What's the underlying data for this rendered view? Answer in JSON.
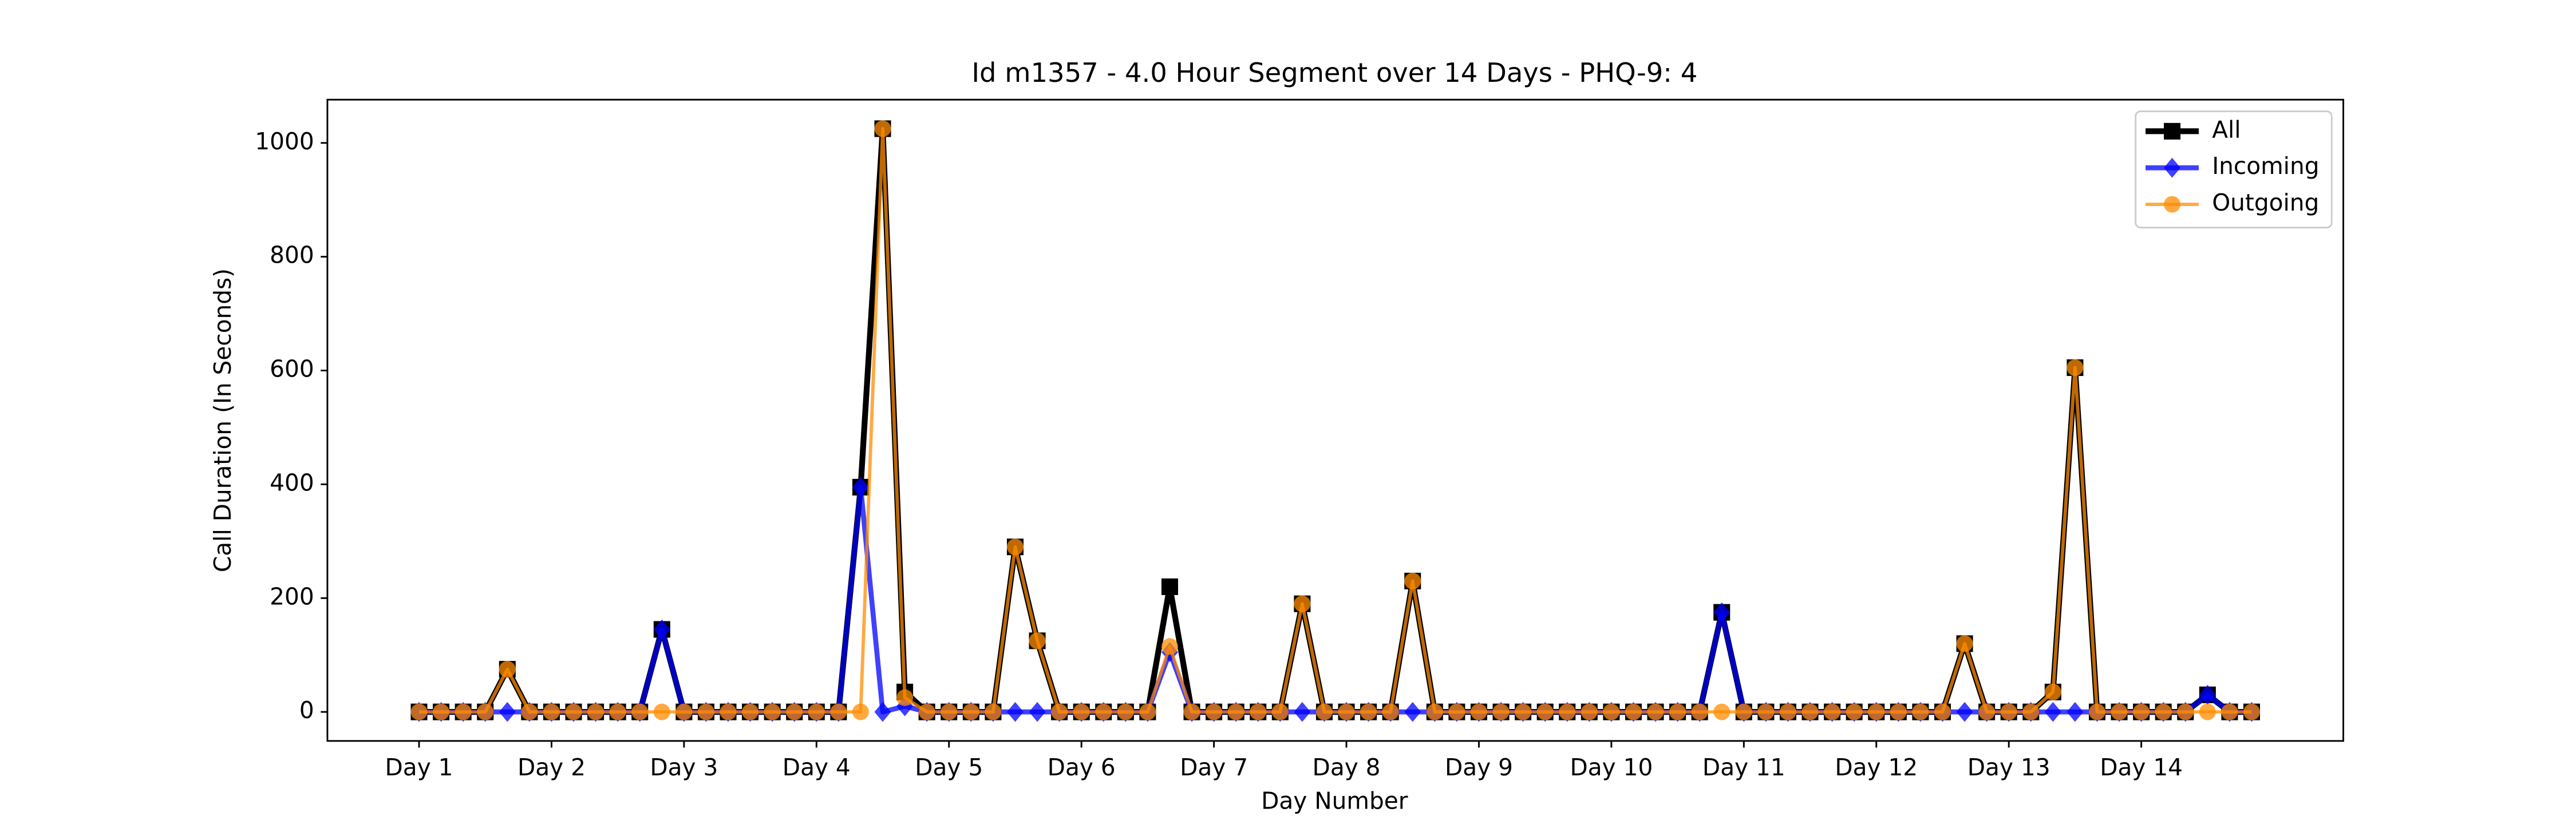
{
  "chart_data": {
    "type": "line",
    "title": "Id m1357 - 4.0 Hour Segment over 14 Days - PHQ-9: 4",
    "xlabel": "Day Number",
    "ylabel": "Call Duration (In Seconds)",
    "x": [
      0,
      1,
      2,
      3,
      4,
      5,
      6,
      7,
      8,
      9,
      10,
      11,
      12,
      13,
      14,
      15,
      16,
      17,
      18,
      19,
      20,
      21,
      22,
      23,
      24,
      25,
      26,
      27,
      28,
      29,
      30,
      31,
      32,
      33,
      34,
      35,
      36,
      37,
      38,
      39,
      40,
      41,
      42,
      43,
      44,
      45,
      46,
      47,
      48,
      49,
      50,
      51,
      52,
      53,
      54,
      55,
      56,
      57,
      58,
      59,
      60,
      61,
      62,
      63,
      64,
      65,
      66,
      67,
      68,
      69,
      70,
      71,
      72,
      73,
      74,
      75,
      76,
      77,
      78,
      79,
      80,
      81,
      82,
      83
    ],
    "xlim": [
      -4.15,
      87.15
    ],
    "xticks": [
      {
        "value": 0,
        "label": "Day 1"
      },
      {
        "value": 6,
        "label": "Day 2"
      },
      {
        "value": 12,
        "label": "Day 3"
      },
      {
        "value": 18,
        "label": "Day 4"
      },
      {
        "value": 24,
        "label": "Day 5"
      },
      {
        "value": 30,
        "label": "Day 6"
      },
      {
        "value": 36,
        "label": "Day 7"
      },
      {
        "value": 42,
        "label": "Day 8"
      },
      {
        "value": 48,
        "label": "Day 9"
      },
      {
        "value": 54,
        "label": "Day 10"
      },
      {
        "value": 60,
        "label": "Day 11"
      },
      {
        "value": 66,
        "label": "Day 12"
      },
      {
        "value": 72,
        "label": "Day 13"
      },
      {
        "value": 78,
        "label": "Day 14"
      }
    ],
    "ylim": [
      -51,
      1076
    ],
    "yticks": [
      0,
      200,
      400,
      600,
      800,
      1000
    ],
    "legend": "upper right",
    "series": [
      {
        "name": "All",
        "color": "#000000",
        "marker": "square",
        "values": [
          0,
          0,
          0,
          0,
          75,
          0,
          0,
          0,
          0,
          0,
          0,
          145,
          0,
          0,
          0,
          0,
          0,
          0,
          0,
          0,
          395,
          1025,
          35,
          0,
          0,
          0,
          0,
          290,
          125,
          0,
          0,
          0,
          0,
          0,
          220,
          0,
          0,
          0,
          0,
          0,
          190,
          0,
          0,
          0,
          0,
          230,
          0,
          0,
          0,
          0,
          0,
          0,
          0,
          0,
          0,
          0,
          0,
          0,
          0,
          175,
          0,
          0,
          0,
          0,
          0,
          0,
          0,
          0,
          0,
          0,
          120,
          0,
          0,
          0,
          35,
          605,
          0,
          0,
          0,
          0,
          0,
          30,
          0,
          0
        ]
      },
      {
        "name": "Incoming",
        "color": "#0000ff",
        "marker": "diamond",
        "values": [
          0,
          0,
          0,
          0,
          0,
          0,
          0,
          0,
          0,
          0,
          0,
          145,
          0,
          0,
          0,
          0,
          0,
          0,
          0,
          0,
          395,
          0,
          10,
          0,
          0,
          0,
          0,
          0,
          0,
          0,
          0,
          0,
          0,
          0,
          105,
          0,
          0,
          0,
          0,
          0,
          0,
          0,
          0,
          0,
          0,
          0,
          0,
          0,
          0,
          0,
          0,
          0,
          0,
          0,
          0,
          0,
          0,
          0,
          0,
          175,
          0,
          0,
          0,
          0,
          0,
          0,
          0,
          0,
          0,
          0,
          0,
          0,
          0,
          0,
          0,
          0,
          0,
          0,
          0,
          0,
          0,
          30,
          0,
          0
        ]
      },
      {
        "name": "Outgoing",
        "color": "#ff8c00",
        "marker": "circle",
        "values": [
          0,
          0,
          0,
          0,
          75,
          0,
          0,
          0,
          0,
          0,
          0,
          0,
          0,
          0,
          0,
          0,
          0,
          0,
          0,
          0,
          0,
          1025,
          25,
          0,
          0,
          0,
          0,
          290,
          125,
          0,
          0,
          0,
          0,
          0,
          115,
          0,
          0,
          0,
          0,
          0,
          190,
          0,
          0,
          0,
          0,
          230,
          0,
          0,
          0,
          0,
          0,
          0,
          0,
          0,
          0,
          0,
          0,
          0,
          0,
          0,
          0,
          0,
          0,
          0,
          0,
          0,
          0,
          0,
          0,
          0,
          120,
          0,
          0,
          0,
          35,
          605,
          0,
          0,
          0,
          0,
          0,
          0,
          0,
          0
        ]
      }
    ]
  }
}
